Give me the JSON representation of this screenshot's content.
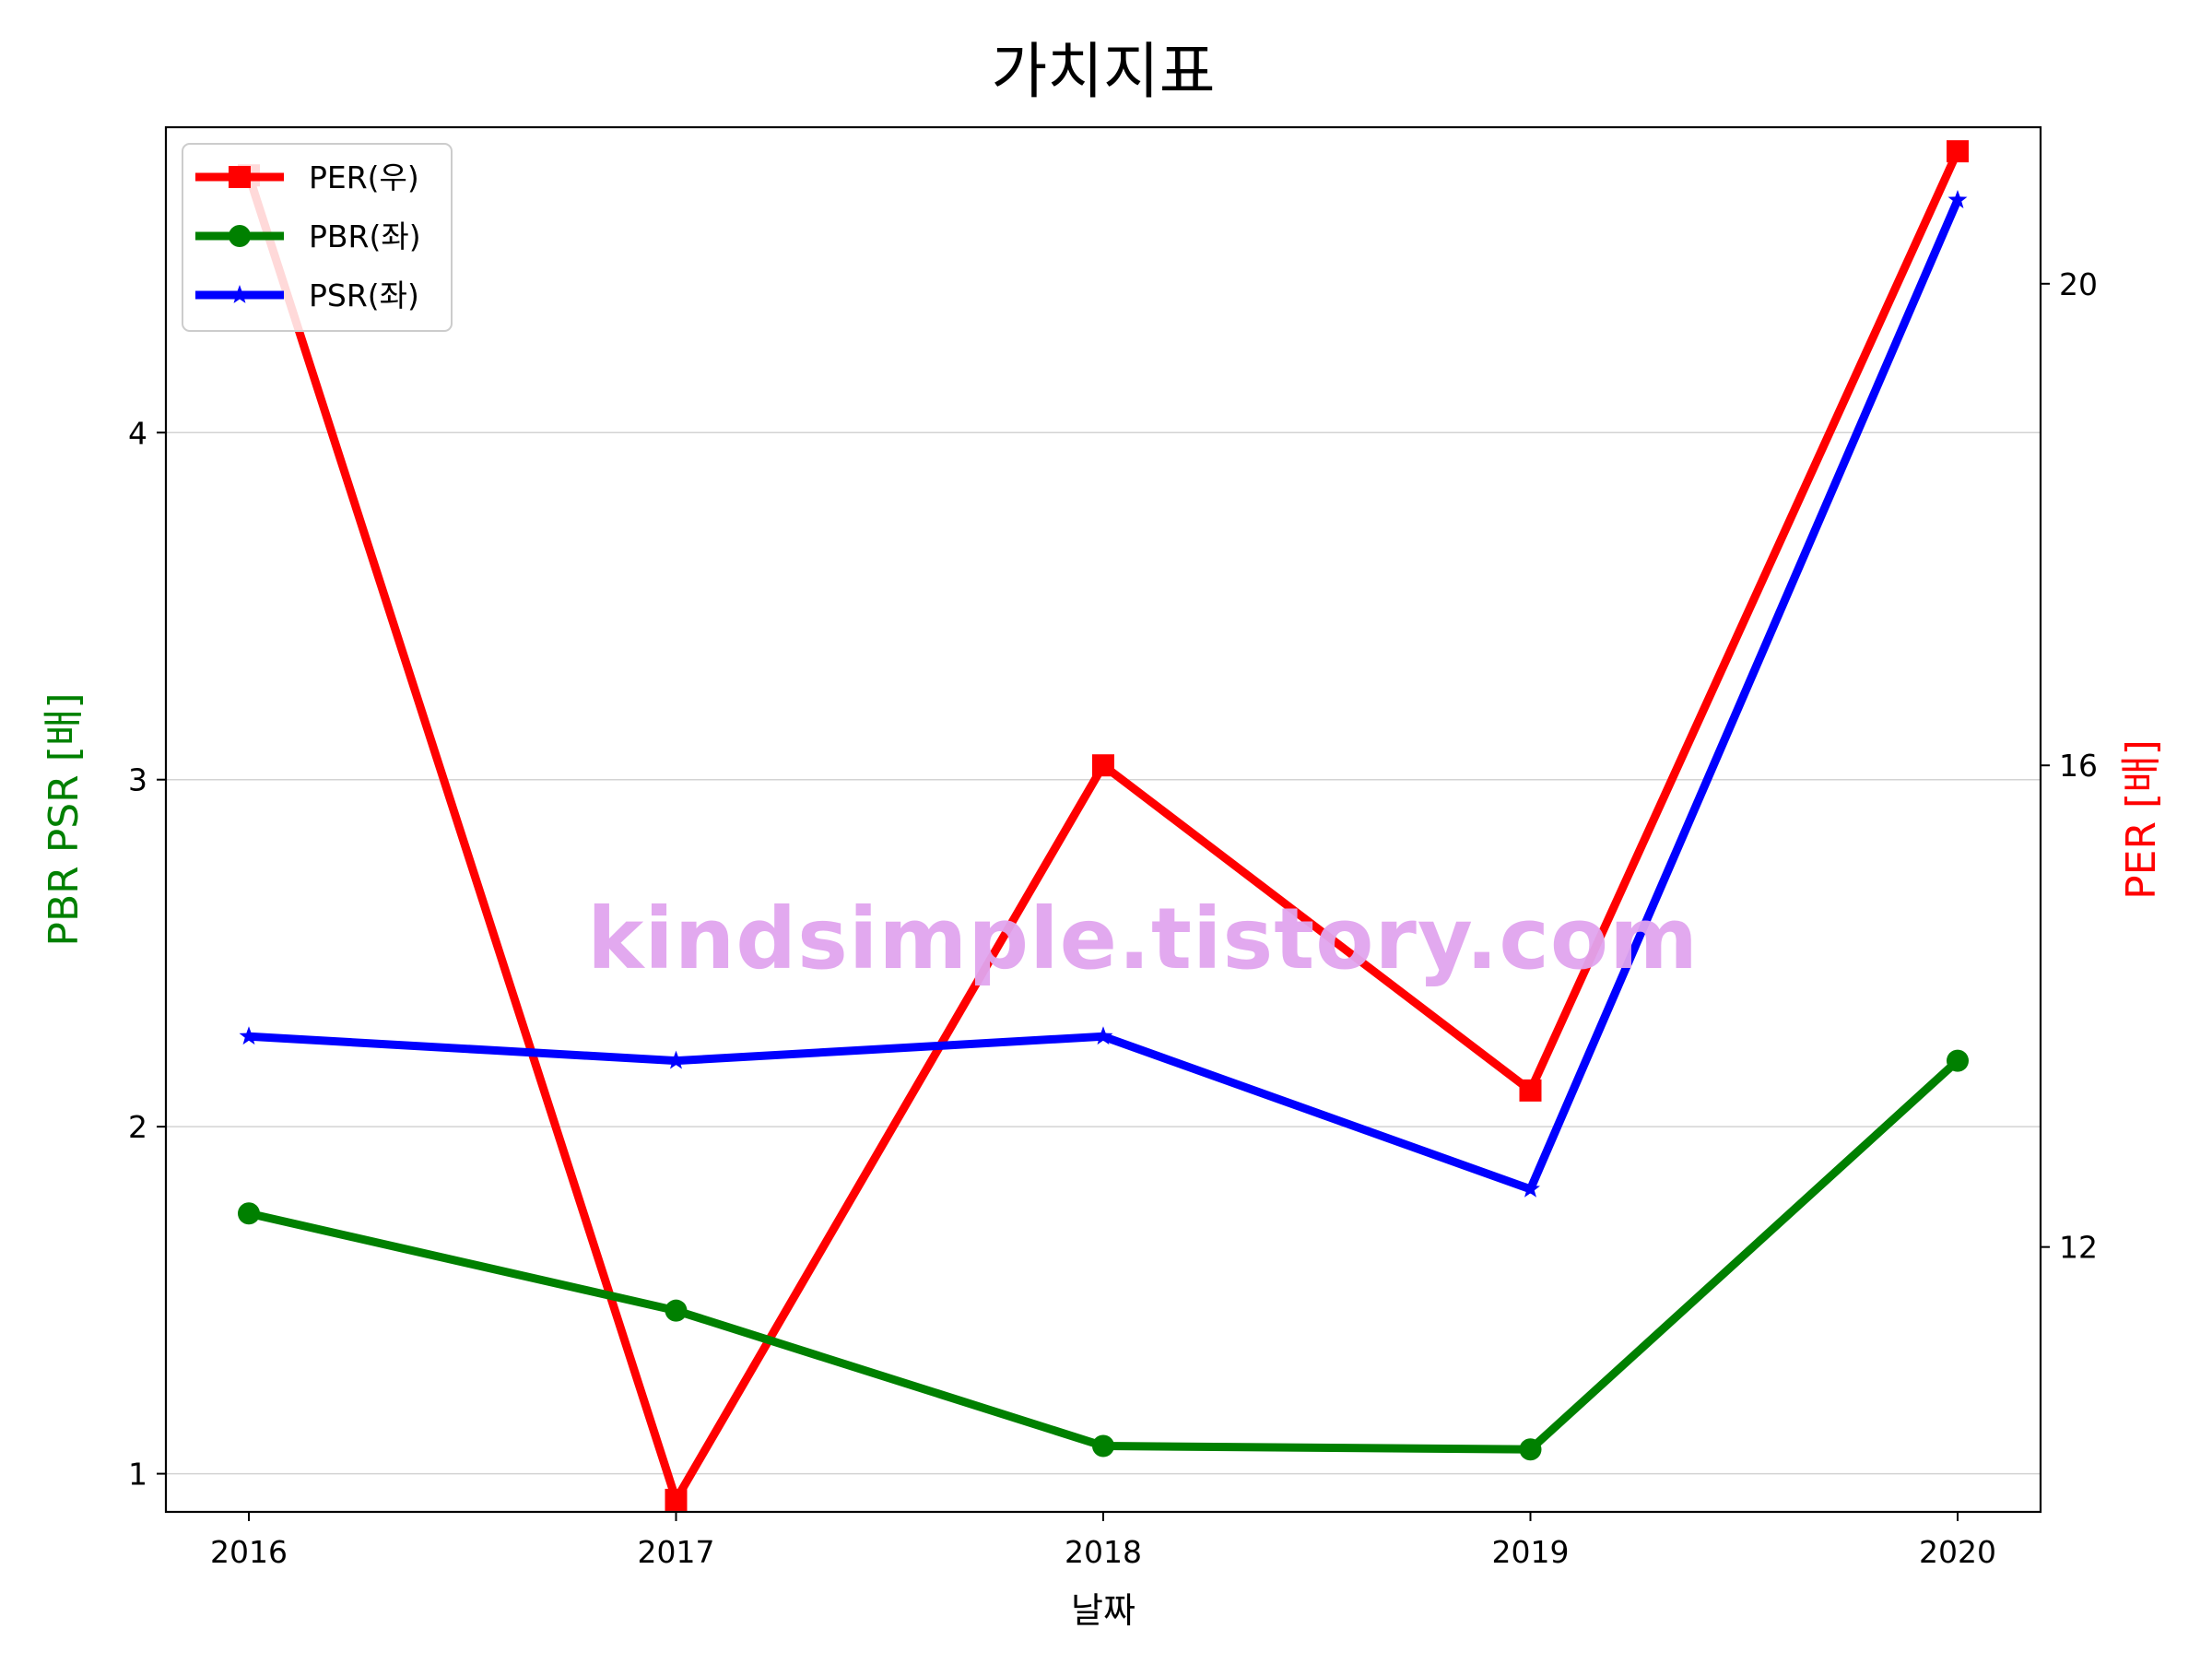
{
  "chart_data": {
    "type": "line",
    "title": "가치지표",
    "xlabel": "날짜",
    "ylabel_left": "PBR PSR [배]",
    "ylabel_right": "PER [배]",
    "categories": [
      "2016",
      "2017",
      "2018",
      "2019",
      "2020"
    ],
    "left_axis": {
      "ylim": [
        0.89,
        4.88
      ],
      "ticks": [
        1,
        2,
        3,
        4
      ],
      "tick_labels": [
        "1",
        "2",
        "3",
        "4"
      ],
      "grid": true
    },
    "right_axis": {
      "ylim": [
        9.8,
        21.3
      ],
      "ticks": [
        12,
        16,
        20
      ],
      "tick_labels": [
        "12",
        "16",
        "20"
      ]
    },
    "series": [
      {
        "name": "PER(우)",
        "axis": "right",
        "color": "#ff0000",
        "marker": "square",
        "values": [
          20.9,
          9.9,
          16.0,
          13.3,
          21.1
        ]
      },
      {
        "name": "PBR(좌)",
        "axis": "left",
        "color": "#008000",
        "marker": "circle",
        "values": [
          1.75,
          1.47,
          1.08,
          1.07,
          2.19
        ]
      },
      {
        "name": "PSR(좌)",
        "axis": "left",
        "color": "#0000ff",
        "marker": "star",
        "values": [
          2.26,
          2.19,
          2.26,
          1.82,
          4.67
        ]
      }
    ],
    "legend": {
      "position": "upper-left",
      "order": [
        "PER(우)",
        "PBR(좌)",
        "PSR(좌)"
      ]
    },
    "watermark": "kindsimple.tistory.com",
    "watermark_color": "#e0a4ee"
  }
}
